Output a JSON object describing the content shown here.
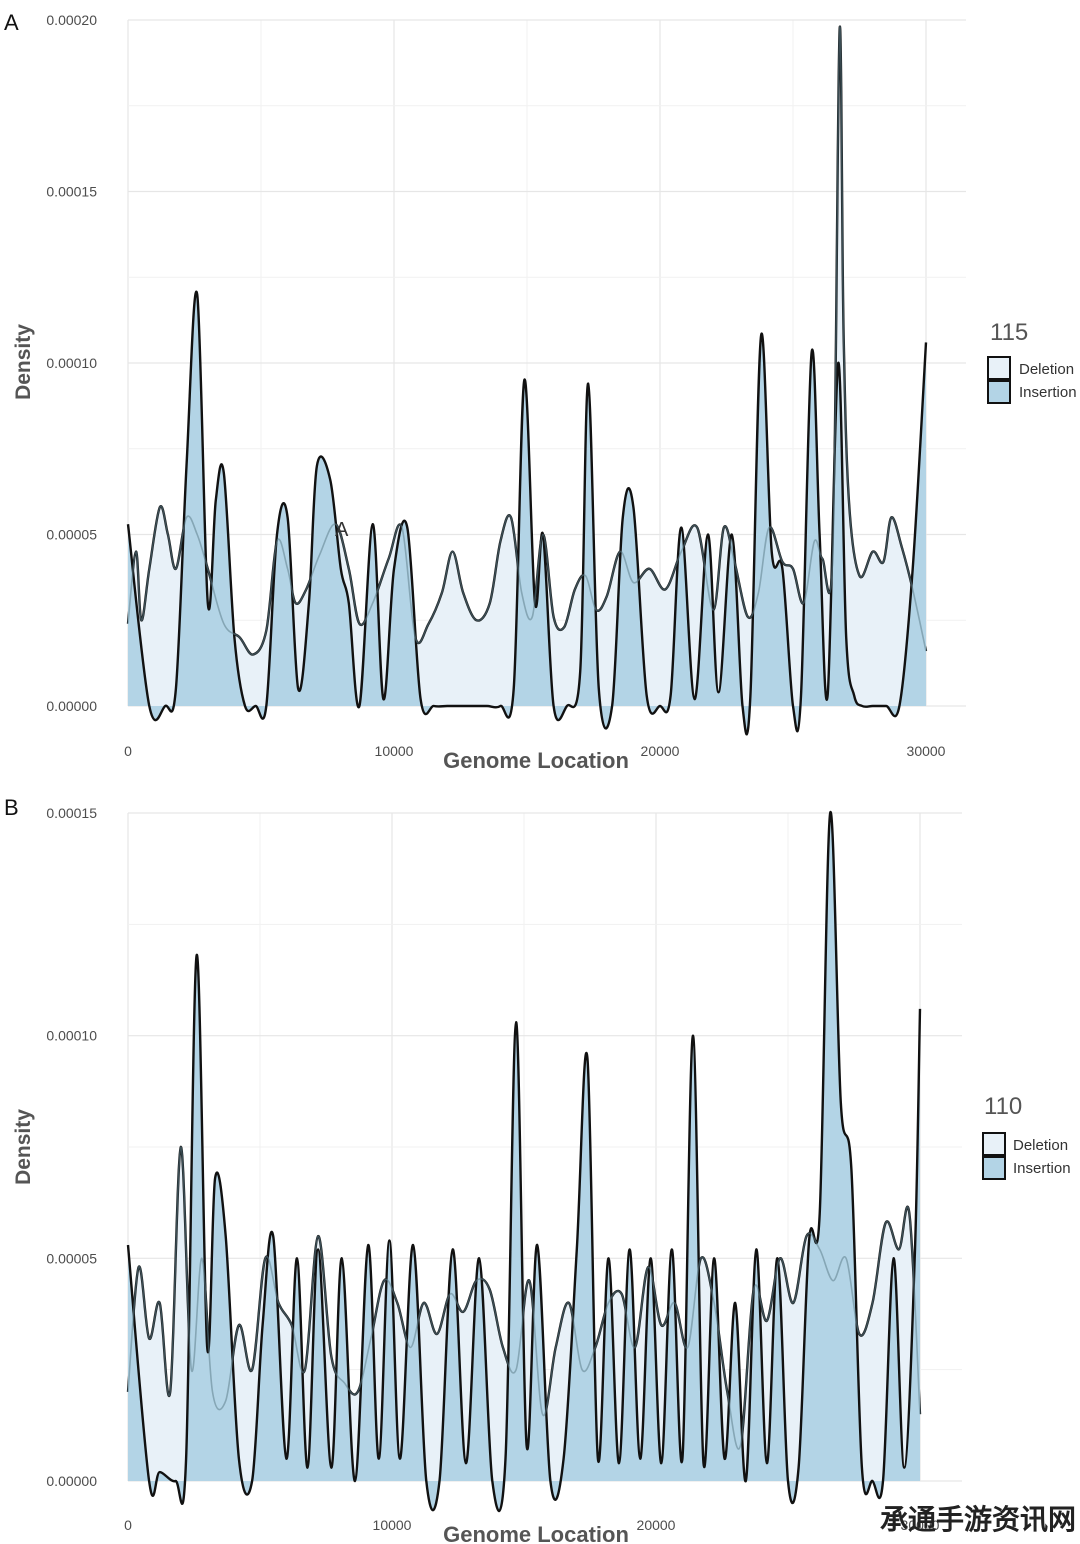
{
  "watermark": "承通手游资讯网",
  "colors": {
    "deletion_fill": "#e8f1f8",
    "insertion_fill": "#b3d4e6",
    "outline": "#111111",
    "insertion_inner_line": "#5e7f8c",
    "grid": "#e6e6e6"
  },
  "chart_data": [
    {
      "panel": "A",
      "type": "area",
      "title": "",
      "xlabel": "Genome Location",
      "ylabel": "Density",
      "xlim": [
        0,
        30000
      ],
      "ylim": [
        0,
        0.0002
      ],
      "xticks": [
        0,
        10000,
        20000,
        30000
      ],
      "xtick_labels": [
        "0",
        "10000",
        "20000",
        "30000"
      ],
      "yticks": [
        0,
        5e-05,
        0.0001,
        0.00015,
        0.0002
      ],
      "ytick_labels": [
        "0.00000",
        "0.00005",
        "0.00010",
        "0.00015",
        "0.00020"
      ],
      "grid": true,
      "legend": {
        "title": "115",
        "position": "right",
        "entries": [
          "Deletion",
          "Insertion"
        ]
      },
      "annotation": "A",
      "series": [
        {
          "name": "Deletion",
          "x": [
            0,
            300,
            500,
            800,
            1200,
            1500,
            1800,
            2200,
            2600,
            3000,
            3600,
            4200,
            4700,
            5200,
            5600,
            6000,
            6300,
            6700,
            7200,
            7800,
            8300,
            8700,
            9200,
            9800,
            10300,
            10800,
            11300,
            11800,
            12200,
            12600,
            13100,
            13600,
            14000,
            14400,
            14800,
            15200,
            15600,
            16000,
            16400,
            16800,
            17200,
            17600,
            18000,
            18500,
            19000,
            19600,
            20200,
            20800,
            21400,
            22000,
            22400,
            22800,
            23300,
            23700,
            24100,
            24600,
            25000,
            25400,
            25800,
            26100,
            26500,
            26750,
            26900,
            27100,
            27500,
            28000,
            28400,
            28700,
            29100,
            29500,
            30000
          ],
          "values": [
            2.4e-05,
            4.5e-05,
            2.5e-05,
            4e-05,
            5.8e-05,
            5e-05,
            4e-05,
            5.5e-05,
            5e-05,
            4e-05,
            2.4e-05,
            2e-05,
            1.5e-05,
            2.2e-05,
            4.8e-05,
            4e-05,
            3e-05,
            3.4e-05,
            4.4e-05,
            5.3e-05,
            4e-05,
            2.4e-05,
            3e-05,
            4.3e-05,
            5.2e-05,
            2e-05,
            2.4e-05,
            3.3e-05,
            4.5e-05,
            3.3e-05,
            2.5e-05,
            3e-05,
            4.8e-05,
            5.5e-05,
            3.3e-05,
            2.6e-05,
            5e-05,
            2.6e-05,
            2.3e-05,
            3.4e-05,
            3.8e-05,
            2.8e-05,
            3.2e-05,
            4.5e-05,
            3.6e-05,
            4e-05,
            3.4e-05,
            4.5e-05,
            5.2e-05,
            2.8e-05,
            5.2e-05,
            4.2e-05,
            2.6e-05,
            3.3e-05,
            5.2e-05,
            4.2e-05,
            4e-05,
            3e-05,
            4.8e-05,
            4.3e-05,
            4.5e-05,
            0.000197,
            0.00011,
            6e-05,
            3.8e-05,
            4.5e-05,
            4.2e-05,
            5.5e-05,
            4.6e-05,
            3.4e-05,
            1.6e-05
          ]
        },
        {
          "name": "Insertion",
          "x": [
            0,
            800,
            1400,
            1800,
            2200,
            2600,
            3000,
            3300,
            3600,
            4000,
            4400,
            4800,
            5200,
            5600,
            6000,
            6400,
            6800,
            7100,
            7600,
            8000,
            8300,
            8700,
            9200,
            9600,
            10000,
            10500,
            11000,
            11500,
            12000,
            12500,
            13000,
            13500,
            14000,
            14500,
            14900,
            15300,
            15600,
            16000,
            16500,
            17000,
            17300,
            17700,
            18200,
            18600,
            19000,
            19500,
            20000,
            20400,
            20800,
            21300,
            21800,
            22200,
            22700,
            23100,
            23400,
            23800,
            24200,
            24600,
            25000,
            25300,
            25700,
            26000,
            26300,
            26700,
            27000,
            27300,
            27600,
            28000,
            28500,
            29000,
            29500,
            30000
          ],
          "values": [
            5.3e-05,
            0.0,
            0.0,
            5e-06,
            7e-05,
            0.00012,
            3e-05,
            6e-05,
            6.8e-05,
            2e-05,
            0.0,
            0.0,
            0.0,
            5e-05,
            5.5e-05,
            5e-06,
            3e-05,
            7e-05,
            6.6e-05,
            4e-05,
            3e-05,
            0.0,
            5.3e-05,
            2e-06,
            4e-05,
            5.2e-05,
            2e-06,
            0.0,
            0.0,
            0.0,
            0.0,
            0.0,
            0.0,
            5e-06,
            9.5e-05,
            3e-05,
            5e-05,
            0.0,
            0.0,
            1e-05,
            9.4e-05,
            5e-06,
            0.0,
            5.5e-05,
            5.8e-05,
            3e-06,
            0.0,
            3e-06,
            5.2e-05,
            2e-06,
            5e-05,
            4e-06,
            5e-05,
            0.0,
            3e-06,
            0.000108,
            4.5e-05,
            4e-05,
            0.0,
            3e-06,
            0.000103,
            5e-05,
            3e-06,
            0.0001,
            2e-05,
            3e-06,
            0.0,
            0.0,
            0.0,
            0.0,
            4e-05,
            0.000106
          ]
        }
      ]
    },
    {
      "panel": "B",
      "type": "area",
      "title": "",
      "xlabel": "Genome Location",
      "ylabel": "Density",
      "xlim": [
        0,
        30000
      ],
      "ylim": [
        0,
        0.00015
      ],
      "xticks": [
        0,
        10000,
        20000,
        30000
      ],
      "xtick_labels": [
        "0",
        "10000",
        "20000",
        "30000"
      ],
      "yticks": [
        0,
        5e-05,
        0.0001,
        0.00015
      ],
      "ytick_labels": [
        "0.00000",
        "0.00005",
        "0.00010",
        "0.00015"
      ],
      "grid": true,
      "legend": {
        "title": "110",
        "position": "right",
        "entries": [
          "Deletion",
          "Insertion"
        ]
      },
      "series": [
        {
          "name": "Deletion",
          "x": [
            0,
            400,
            800,
            1200,
            1600,
            2000,
            2400,
            2800,
            3200,
            3700,
            4200,
            4700,
            5200,
            5700,
            6200,
            6700,
            7200,
            7700,
            8200,
            8700,
            9200,
            9700,
            10200,
            10700,
            11200,
            11700,
            12200,
            12700,
            13200,
            13700,
            14200,
            14700,
            15200,
            15700,
            16200,
            16700,
            17200,
            17700,
            18200,
            18700,
            19200,
            19700,
            20200,
            20700,
            21200,
            21700,
            22200,
            22700,
            23200,
            23700,
            24200,
            24700,
            25200,
            25700,
            26200,
            26700,
            27200,
            27700,
            28200,
            28700,
            29200,
            29600,
            30000
          ],
          "values": [
            2e-05,
            4.8e-05,
            3.2e-05,
            4e-05,
            2e-05,
            7.5e-05,
            2.5e-05,
            5e-05,
            2e-05,
            1.8e-05,
            3.5e-05,
            2.5e-05,
            5e-05,
            4e-05,
            3.5e-05,
            2.5e-05,
            5.5e-05,
            2.8e-05,
            2.2e-05,
            2e-05,
            3.2e-05,
            4.5e-05,
            4e-05,
            3e-05,
            4e-05,
            3.3e-05,
            4.2e-05,
            3.8e-05,
            4.5e-05,
            4.3e-05,
            3e-05,
            2.5e-05,
            4.5e-05,
            1.5e-05,
            3e-05,
            4e-05,
            2.5e-05,
            3e-05,
            4e-05,
            4.2e-05,
            3e-05,
            4.8e-05,
            3.5e-05,
            4e-05,
            3e-05,
            5e-05,
            4e-05,
            2e-05,
            8e-06,
            4.3e-05,
            3.6e-05,
            5e-05,
            4e-05,
            5.5e-05,
            5.2e-05,
            4.5e-05,
            5e-05,
            3.3e-05,
            4e-05,
            5.8e-05,
            5.2e-05,
            6e-05,
            1.5e-05
          ]
        },
        {
          "name": "Insertion",
          "x": [
            0,
            800,
            1200,
            1800,
            2200,
            2600,
            3000,
            3300,
            3700,
            4200,
            4700,
            5100,
            5500,
            6000,
            6400,
            6800,
            7200,
            7700,
            8100,
            8600,
            9100,
            9500,
            9900,
            10300,
            10800,
            11300,
            11800,
            12300,
            12800,
            13300,
            13800,
            14300,
            14700,
            15100,
            15500,
            16000,
            16500,
            17000,
            17400,
            17800,
            18200,
            18600,
            19000,
            19400,
            19800,
            20200,
            20600,
            21000,
            21400,
            21800,
            22200,
            22600,
            23000,
            23400,
            23800,
            24200,
            24600,
            25000,
            25400,
            25800,
            26200,
            26600,
            27000,
            27400,
            27800,
            28200,
            28600,
            29000,
            29400,
            29800,
            30000
          ],
          "values": [
            5.3e-05,
            0.0,
            2e-06,
            0.0,
            5e-06,
            0.000118,
            3e-05,
            6.8e-05,
            5.5e-05,
            5e-06,
            0.0,
            3.5e-05,
            5.5e-05,
            5e-06,
            5e-05,
            3e-06,
            5.2e-05,
            3e-06,
            5e-05,
            0.0,
            5.3e-05,
            5e-06,
            5.4e-05,
            5e-06,
            5.3e-05,
            0.0,
            0.0,
            5.2e-05,
            4e-06,
            5e-05,
            0.0,
            5e-06,
            0.000103,
            8e-06,
            5.3e-05,
            0.0,
            5e-06,
            5.2e-05,
            9.5e-05,
            5e-06,
            5e-05,
            4e-06,
            5.2e-05,
            5e-06,
            5e-05,
            4e-06,
            5.2e-05,
            5e-06,
            0.0001,
            4e-06,
            5e-05,
            5e-06,
            4e-05,
            0.0,
            5.2e-05,
            4e-06,
            5e-05,
            0.0,
            3e-06,
            5.4e-05,
            6e-05,
            0.00015,
            8.5e-05,
            7e-05,
            3e-06,
            0.0,
            0.0,
            5e-05,
            3e-06,
            5e-05,
            0.000106
          ]
        }
      ]
    }
  ]
}
